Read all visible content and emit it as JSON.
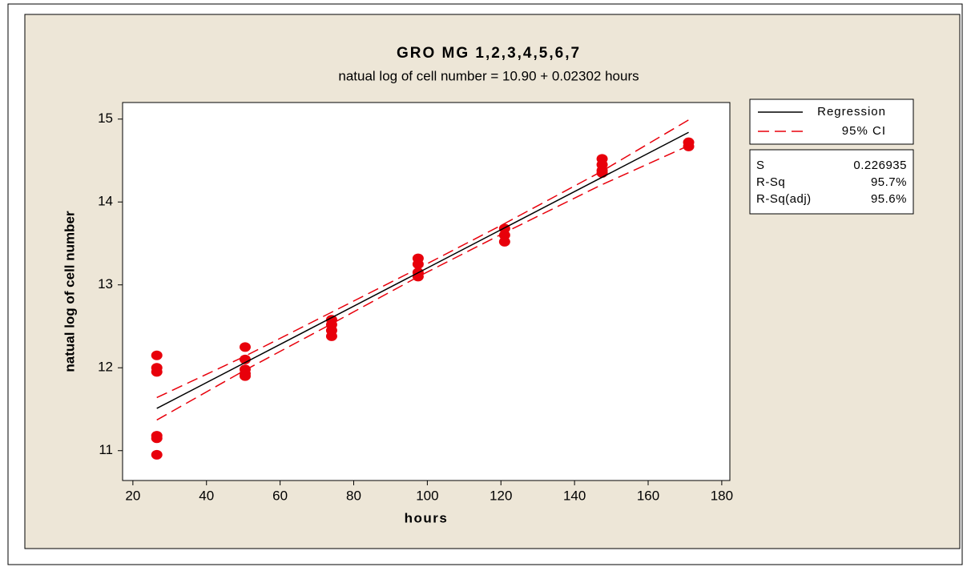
{
  "chart_data": {
    "type": "scatter",
    "title": "GRO MG 1,2,3,4,5,6,7",
    "subtitle": "natual log of cell number =  10.90 + 0.02302 hours",
    "x_label": "hours",
    "y_label": "natual log of cell number",
    "xlim": [
      17.2,
      182.2
    ],
    "xticks": [
      20,
      40,
      60,
      80,
      100,
      120,
      140,
      160,
      180
    ],
    "ylim": [
      10.64,
      15.2
    ],
    "yticks": [
      11,
      12,
      13,
      14,
      15
    ],
    "grid": false,
    "series": [
      {
        "kind": "points",
        "color": "#e8000b",
        "x": [
          26.5,
          26.5,
          26.5,
          26.5,
          26.5,
          26.5,
          50.5,
          50.5,
          50.5,
          50.5,
          50.5,
          74,
          74,
          74,
          74,
          97.5,
          97.5,
          97.5,
          97.5,
          121,
          121,
          121,
          147.5,
          147.5,
          147.5,
          147.5,
          171,
          171
        ],
        "values": [
          12.15,
          12.0,
          11.95,
          11.18,
          11.15,
          10.95,
          12.25,
          12.1,
          11.98,
          11.93,
          11.9,
          12.58,
          12.52,
          12.45,
          12.38,
          13.32,
          13.25,
          13.15,
          13.1,
          13.68,
          13.6,
          13.52,
          14.52,
          14.45,
          14.38,
          14.35,
          14.72,
          14.67
        ]
      },
      {
        "kind": "line",
        "name": "Regression",
        "color": "#000000",
        "x": [
          26.5,
          171
        ],
        "values": [
          11.51,
          14.84
        ]
      },
      {
        "kind": "band",
        "name": "95% CI",
        "color": "#e8000b",
        "x": [
          26.5,
          50,
          74,
          98,
          121,
          147,
          171
        ],
        "values": [
          11.64,
          12.13,
          12.67,
          13.21,
          13.74,
          14.36,
          14.99
        ],
        "lower": [
          11.37,
          11.96,
          12.53,
          13.11,
          13.63,
          14.2,
          14.68
        ]
      }
    ],
    "stats": [
      {
        "label": "S",
        "value": "0.226935"
      },
      {
        "label": "R-Sq",
        "value": "95.7%"
      },
      {
        "label": "R-Sq(adj)",
        "value": "95.6%"
      }
    ]
  }
}
